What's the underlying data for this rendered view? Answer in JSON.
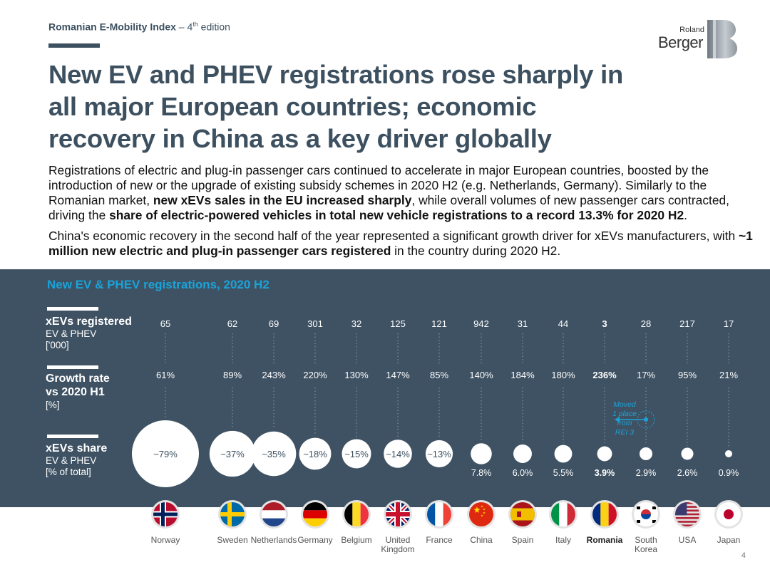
{
  "header": {
    "report": "Romanian E-Mobility Index",
    "edition_sep": " – 4",
    "edition_sup": "th",
    "edition_tail": " edition"
  },
  "logo": {
    "line1": "Roland",
    "line2": "Berger"
  },
  "title": {
    "line1": "New EV and PHEV registrations rose sharply in",
    "line2": "all major European countries; economic",
    "line3": "recovery in China as a key driver globally"
  },
  "body": {
    "p1_a": "Registrations of electric and plug-in passenger cars continued to accelerate in major European countries, boosted by the introduction of new or the upgrade of existing subsidy schemes in 2020 H2 (e.g. Netherlands, Germany). Similarly to the Romanian market, ",
    "p1_b": "new xEVs sales in the EU increased sharply",
    "p1_c": ", while overall volumes of new passenger cars contracted, driving the ",
    "p1_d": "share of electric-powered vehicles in total new vehicle registrations to a record 13.3% for 2020 H2",
    "p1_e": ".",
    "p2_a": "China's economic recovery in the second half of the year represented a significant growth driver for xEVs manufacturers, with ",
    "p2_b": "~1 million new electric and plug-in passenger cars registered",
    "p2_c": " in the country during 2020 H2."
  },
  "rows": {
    "registered": {
      "title": "xEVs registered",
      "sub1": "EV & PHEV",
      "sub2": "['000]"
    },
    "growth": {
      "title1": "Growth rate",
      "title2": "vs 2020 H1",
      "sub": "[%]"
    },
    "share": {
      "title": "xEVs share",
      "sub1": "EV & PHEV",
      "sub2": "[% of total]"
    }
  },
  "annotation": {
    "l1": "Moved",
    "l2": "1 place",
    "l3": "from",
    "l4": "REI 3"
  },
  "page_number": "4",
  "colors": {
    "dark": "#3d5060",
    "panel": "#3f5263",
    "accent": "#1aa3d9",
    "flag_bg": "#e3e3e3"
  },
  "chart_data": {
    "type": "table",
    "title": "New EV & PHEV registrations, 2020 H2",
    "highlight": "Romania",
    "countries": [
      {
        "name": "Norway",
        "name2": "",
        "flag": "norway-flag",
        "registered": "65",
        "growth": "61%",
        "share": 79,
        "share_label": "~79%",
        "label_inside": true
      },
      {
        "name": "Sweden",
        "name2": "",
        "flag": "sweden-flag",
        "registered": "62",
        "growth": "89%",
        "share": 37,
        "share_label": "~37%",
        "label_inside": true
      },
      {
        "name": "Netherlands",
        "name2": "",
        "flag": "netherlands-flag",
        "registered": "69",
        "growth": "243%",
        "share": 35,
        "share_label": "~35%",
        "label_inside": true
      },
      {
        "name": "Germany",
        "name2": "",
        "flag": "germany-flag",
        "registered": "301",
        "growth": "220%",
        "share": 18,
        "share_label": "~18%",
        "label_inside": true
      },
      {
        "name": "Belgium",
        "name2": "",
        "flag": "belgium-flag",
        "registered": "32",
        "growth": "130%",
        "share": 15,
        "share_label": "~15%",
        "label_inside": true
      },
      {
        "name": "United",
        "name2": "Kingdom",
        "flag": "uk-flag",
        "registered": "125",
        "growth": "147%",
        "share": 14,
        "share_label": "~14%",
        "label_inside": true
      },
      {
        "name": "France",
        "name2": "",
        "flag": "france-flag",
        "registered": "121",
        "growth": "85%",
        "share": 13,
        "share_label": "~13%",
        "label_inside": true
      },
      {
        "name": "China",
        "name2": "",
        "flag": "china-flag",
        "registered": "942",
        "growth": "140%",
        "share": 7.8,
        "share_label": "7.8%",
        "label_inside": false
      },
      {
        "name": "Spain",
        "name2": "",
        "flag": "spain-flag",
        "registered": "31",
        "growth": "184%",
        "share": 6.0,
        "share_label": "6.0%",
        "label_inside": false
      },
      {
        "name": "Italy",
        "name2": "",
        "flag": "italy-flag",
        "registered": "44",
        "growth": "180%",
        "share": 5.5,
        "share_label": "5.5%",
        "label_inside": false
      },
      {
        "name": "Romania",
        "name2": "",
        "flag": "romania-flag",
        "registered": "3",
        "growth": "236%",
        "share": 3.9,
        "share_label": "3.9%",
        "label_inside": false
      },
      {
        "name": "South",
        "name2": "Korea",
        "flag": "south-korea-flag",
        "registered": "28",
        "growth": "17%",
        "share": 2.9,
        "share_label": "2.9%",
        "label_inside": false
      },
      {
        "name": "USA",
        "name2": "",
        "flag": "usa-flag",
        "registered": "217",
        "growth": "95%",
        "share": 2.6,
        "share_label": "2.6%",
        "label_inside": false
      },
      {
        "name": "Japan",
        "name2": "",
        "flag": "japan-flag",
        "registered": "17",
        "growth": "21%",
        "share": 0.9,
        "share_label": "0.9%",
        "label_inside": false
      }
    ]
  }
}
